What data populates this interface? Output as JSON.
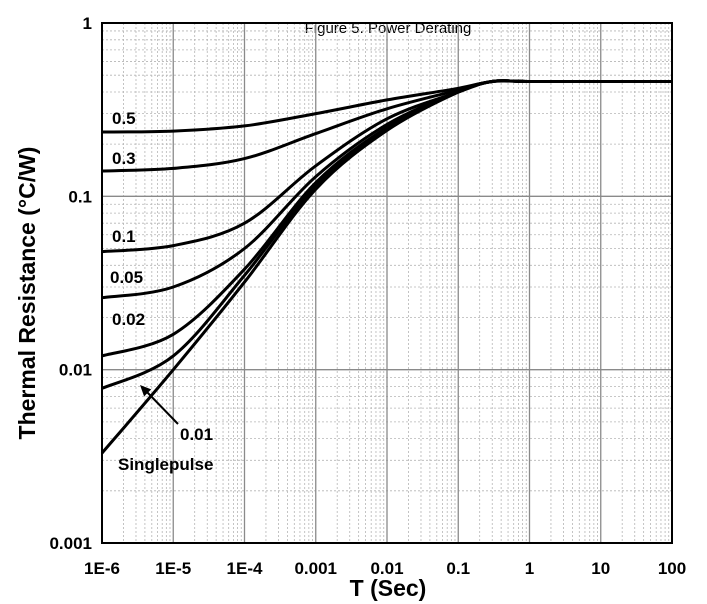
{
  "chart_data": {
    "type": "line",
    "title": "Figure 5. Power Derating",
    "xlabel": "T (Sec)",
    "ylabel": "Thermal Resistance (°C/W)",
    "x_scale": "log",
    "y_scale": "log",
    "xlim": [
      1e-06,
      100
    ],
    "ylim": [
      0.001,
      1
    ],
    "grid": true,
    "x_ticks": [
      "1E-6",
      "1E-5",
      "1E-4",
      "0.001",
      "0.01",
      "0.1",
      "1",
      "10",
      "100"
    ],
    "y_ticks": [
      "0.001",
      "0.01",
      "0.1",
      "1"
    ],
    "series": [
      {
        "name": "0.5",
        "x": [
          1e-06,
          1e-05,
          0.0001,
          0.001,
          0.01,
          0.1,
          0.3,
          1,
          10,
          100
        ],
        "values": [
          0.235,
          0.238,
          0.255,
          0.3,
          0.36,
          0.42,
          0.46,
          0.46,
          0.46,
          0.46
        ]
      },
      {
        "name": "0.3",
        "x": [
          1e-06,
          1e-05,
          0.0001,
          0.001,
          0.01,
          0.1,
          0.3,
          1,
          10,
          100
        ],
        "values": [
          0.14,
          0.145,
          0.165,
          0.23,
          0.32,
          0.41,
          0.46,
          0.46,
          0.46,
          0.46
        ]
      },
      {
        "name": "0.1",
        "x": [
          1e-06,
          1e-05,
          0.0001,
          0.001,
          0.01,
          0.1,
          0.3,
          1,
          10,
          100
        ],
        "values": [
          0.048,
          0.052,
          0.07,
          0.15,
          0.28,
          0.4,
          0.46,
          0.46,
          0.46,
          0.46
        ]
      },
      {
        "name": "0.05",
        "x": [
          1e-06,
          1e-05,
          0.0001,
          0.001,
          0.01,
          0.1,
          0.3,
          1,
          10,
          100
        ],
        "values": [
          0.026,
          0.03,
          0.05,
          0.13,
          0.26,
          0.4,
          0.46,
          0.46,
          0.46,
          0.46
        ]
      },
      {
        "name": "0.02",
        "x": [
          1e-06,
          1e-05,
          0.0001,
          0.001,
          0.01,
          0.1,
          0.3,
          1,
          10,
          100
        ],
        "values": [
          0.012,
          0.016,
          0.038,
          0.12,
          0.25,
          0.4,
          0.46,
          0.46,
          0.46,
          0.46
        ]
      },
      {
        "name": "0.01",
        "x": [
          1e-06,
          1e-05,
          0.0001,
          0.001,
          0.01,
          0.1,
          0.3,
          1,
          10,
          100
        ],
        "values": [
          0.0078,
          0.012,
          0.035,
          0.115,
          0.245,
          0.4,
          0.46,
          0.46,
          0.46,
          0.46
        ]
      },
      {
        "name": "Singlepulse",
        "x": [
          1e-06,
          1e-05,
          0.0001,
          0.001,
          0.01,
          0.1,
          0.3,
          1,
          10,
          100
        ],
        "values": [
          0.0033,
          0.01,
          0.032,
          0.11,
          0.24,
          0.4,
          0.46,
          0.46,
          0.46,
          0.46
        ]
      }
    ]
  }
}
